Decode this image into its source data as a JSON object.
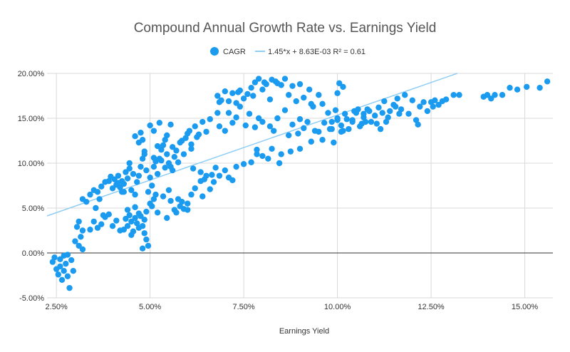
{
  "chart_data": {
    "type": "scatter",
    "title": "Compound Annual Growth Rate vs. Earnings Yield",
    "xlabel": "Earnings Yield",
    "ylabel": "",
    "xlim": [
      2.25,
      15.75
    ],
    "ylim": [
      -5,
      20
    ],
    "x_ticks": [
      "2.50%",
      "5.00%",
      "7.50%",
      "10.00%",
      "12.50%",
      "15.00%"
    ],
    "y_ticks": [
      "-5.00%",
      "0.00%",
      "5.00%",
      "10.00%",
      "15.00%",
      "20.00%"
    ],
    "grid": true,
    "legend_position": "top",
    "point_color": "#1a9bf0",
    "trendline_color": "#8fcdf5",
    "series": [
      {
        "name": "CAGR",
        "points": [
          [
            2.4,
            -1.0
          ],
          [
            2.45,
            -0.5
          ],
          [
            2.5,
            -1.8
          ],
          [
            2.55,
            -2.4
          ],
          [
            2.6,
            -0.7
          ],
          [
            2.65,
            -3.0
          ],
          [
            2.7,
            -0.3
          ],
          [
            2.75,
            -1.2
          ],
          [
            2.8,
            -2.6
          ],
          [
            2.85,
            -3.9
          ],
          [
            2.9,
            -0.8
          ],
          [
            2.95,
            -2.0
          ],
          [
            2.6,
            -1.5
          ],
          [
            2.7,
            -2.0
          ],
          [
            2.8,
            -0.2
          ],
          [
            3.0,
            1.3
          ],
          [
            3.05,
            2.9
          ],
          [
            3.1,
            0.8
          ],
          [
            3.15,
            1.8
          ],
          [
            3.2,
            0.4
          ],
          [
            3.1,
            3.5
          ],
          [
            3.2,
            2.5
          ],
          [
            3.4,
            2.6
          ],
          [
            3.5,
            3.5
          ],
          [
            3.6,
            2.8
          ],
          [
            3.7,
            3.2
          ],
          [
            3.8,
            4.0
          ],
          [
            3.9,
            4.3
          ],
          [
            4.0,
            3.0
          ],
          [
            4.1,
            3.6
          ],
          [
            3.55,
            5.0
          ],
          [
            3.75,
            4.2
          ],
          [
            4.2,
            2.5
          ],
          [
            4.3,
            2.6
          ],
          [
            4.35,
            3.8
          ],
          [
            4.4,
            3.0
          ],
          [
            4.45,
            4.2
          ],
          [
            4.5,
            3.5
          ],
          [
            4.55,
            2.4
          ],
          [
            4.6,
            3.9
          ],
          [
            4.65,
            3.3
          ],
          [
            4.7,
            2.8
          ],
          [
            4.75,
            4.1
          ],
          [
            4.8,
            3.0
          ],
          [
            4.85,
            2.2
          ],
          [
            4.9,
            1.5
          ],
          [
            4.95,
            0.8
          ],
          [
            4.8,
            0.5
          ],
          [
            4.85,
            3.7
          ],
          [
            4.9,
            4.6
          ],
          [
            5.0,
            5.5
          ],
          [
            5.05,
            5.2
          ],
          [
            5.1,
            6.0
          ],
          [
            5.15,
            6.5
          ],
          [
            4.4,
            4.8
          ],
          [
            4.6,
            5.1
          ],
          [
            4.7,
            4.4
          ],
          [
            4.5,
            2.0
          ],
          [
            5.2,
            4.5
          ],
          [
            5.35,
            6.3
          ],
          [
            5.5,
            7.0
          ],
          [
            5.55,
            5.8
          ],
          [
            5.65,
            4.8
          ],
          [
            5.75,
            6.0
          ],
          [
            5.8,
            5.2
          ],
          [
            5.9,
            4.9
          ],
          [
            6.0,
            5.5
          ],
          [
            6.1,
            6.5
          ],
          [
            6.2,
            7.2
          ],
          [
            6.35,
            8.0
          ],
          [
            6.5,
            8.6
          ],
          [
            6.7,
            7.9
          ],
          [
            6.85,
            8.6
          ],
          [
            7.0,
            9.2
          ],
          [
            7.1,
            8.4
          ],
          [
            7.3,
            9.6
          ],
          [
            7.5,
            9.9
          ],
          [
            7.7,
            10.1
          ],
          [
            7.85,
            11.0
          ],
          [
            8.0,
            10.8
          ],
          [
            8.25,
            11.6
          ],
          [
            8.5,
            11.0
          ],
          [
            8.75,
            11.3
          ],
          [
            9.0,
            11.6
          ],
          [
            9.3,
            12.4
          ],
          [
            9.5,
            13.5
          ],
          [
            9.65,
            14.5
          ],
          [
            9.85,
            13.8
          ],
          [
            10.0,
            14.8
          ],
          [
            5.85,
            5.7
          ],
          [
            6.0,
            4.8
          ],
          [
            5.45,
            3.9
          ],
          [
            5.7,
            4.5
          ],
          [
            6.4,
            6.3
          ],
          [
            6.6,
            7.1
          ],
          [
            7.2,
            8.1
          ],
          [
            7.85,
            11.5
          ],
          [
            8.15,
            10.5
          ],
          [
            8.45,
            10.0
          ],
          [
            3.2,
            6.0
          ],
          [
            3.3,
            5.7
          ],
          [
            3.4,
            6.5
          ],
          [
            3.5,
            7.0
          ],
          [
            3.6,
            6.8
          ],
          [
            3.7,
            7.4
          ],
          [
            3.8,
            7.9
          ],
          [
            3.9,
            8.0
          ],
          [
            4.0,
            7.2
          ],
          [
            4.05,
            8.2
          ],
          [
            4.1,
            7.6
          ],
          [
            4.15,
            8.6
          ],
          [
            4.2,
            7.3
          ],
          [
            4.25,
            6.8
          ],
          [
            4.3,
            7.7
          ],
          [
            4.35,
            9.0
          ],
          [
            4.4,
            8.3
          ],
          [
            4.45,
            9.4
          ],
          [
            4.5,
            7.0
          ],
          [
            4.55,
            8.8
          ],
          [
            4.6,
            6.5
          ],
          [
            4.65,
            7.9
          ],
          [
            4.7,
            8.6
          ],
          [
            4.75,
            9.6
          ],
          [
            4.8,
            10.5
          ],
          [
            4.85,
            11.0
          ],
          [
            4.9,
            9.2
          ],
          [
            5.0,
            8.4
          ],
          [
            5.05,
            7.5
          ],
          [
            5.1,
            9.6
          ],
          [
            4.95,
            6.8
          ],
          [
            5.15,
            10.2
          ],
          [
            5.2,
            8.8
          ],
          [
            5.25,
            10.5
          ],
          [
            5.3,
            11.5
          ],
          [
            5.35,
            12.0
          ],
          [
            5.4,
            12.6
          ],
          [
            5.45,
            11.0
          ],
          [
            5.5,
            10.0
          ],
          [
            5.55,
            9.6
          ],
          [
            5.6,
            11.8
          ],
          [
            5.65,
            10.7
          ],
          [
            5.7,
            11.4
          ],
          [
            5.75,
            10.1
          ],
          [
            5.8,
            12.3
          ],
          [
            5.85,
            12.5
          ],
          [
            5.9,
            11.0
          ],
          [
            5.95,
            12.8
          ],
          [
            6.0,
            13.3
          ],
          [
            6.05,
            13.6
          ],
          [
            6.1,
            11.6
          ],
          [
            6.2,
            14.1
          ],
          [
            6.3,
            13.2
          ],
          [
            6.4,
            14.6
          ],
          [
            6.5,
            13.5
          ],
          [
            6.6,
            14.9
          ],
          [
            6.8,
            15.6
          ],
          [
            6.85,
            14.1
          ],
          [
            7.0,
            13.6
          ],
          [
            7.1,
            15.6
          ],
          [
            7.2,
            14.5
          ],
          [
            7.3,
            15.1
          ],
          [
            7.4,
            16.3
          ],
          [
            7.55,
            14.2
          ],
          [
            7.65,
            15.5
          ],
          [
            7.8,
            14.0
          ],
          [
            7.9,
            15.0
          ],
          [
            4.6,
            13.0
          ],
          [
            4.7,
            12.3
          ],
          [
            4.75,
            13.4
          ],
          [
            4.8,
            12.6
          ],
          [
            4.85,
            11.3
          ],
          [
            5.0,
            14.2
          ],
          [
            5.1,
            13.6
          ],
          [
            5.25,
            14.5
          ],
          [
            5.45,
            13.1
          ],
          [
            5.55,
            14.3
          ],
          [
            5.3,
            10.3
          ],
          [
            5.4,
            9.5
          ],
          [
            6.1,
            12.1
          ],
          [
            6.25,
            12.9
          ],
          [
            4.45,
            10.0
          ],
          [
            4.25,
            8.0
          ],
          [
            3.95,
            8.5
          ],
          [
            4.15,
            7.8
          ],
          [
            4.3,
            6.8
          ],
          [
            3.65,
            6.0
          ],
          [
            5.1,
            10.6
          ],
          [
            5.2,
            11.9
          ],
          [
            5.6,
            9.2
          ],
          [
            6.15,
            9.4
          ],
          [
            6.35,
            9.0
          ],
          [
            6.45,
            8.2
          ],
          [
            6.65,
            8.7
          ],
          [
            6.75,
            9.5
          ],
          [
            6.8,
            17.5
          ],
          [
            6.9,
            17.0
          ],
          [
            7.0,
            18.0
          ],
          [
            7.1,
            16.9
          ],
          [
            7.2,
            17.8
          ],
          [
            7.3,
            16.7
          ],
          [
            7.4,
            18.1
          ],
          [
            7.5,
            17.2
          ],
          [
            7.6,
            17.7
          ],
          [
            7.7,
            18.4
          ],
          [
            7.8,
            19.0
          ],
          [
            7.9,
            19.4
          ],
          [
            8.0,
            18.2
          ],
          [
            8.1,
            18.8
          ],
          [
            8.2,
            17.1
          ],
          [
            8.35,
            19.1
          ],
          [
            8.5,
            18.7
          ],
          [
            8.6,
            19.4
          ],
          [
            8.7,
            17.6
          ],
          [
            8.8,
            18.6
          ],
          [
            8.9,
            16.9
          ],
          [
            9.0,
            18.8
          ],
          [
            9.1,
            17.3
          ],
          [
            9.25,
            18.2
          ],
          [
            9.35,
            16.3
          ],
          [
            9.5,
            17.6
          ],
          [
            9.6,
            16.6
          ],
          [
            9.75,
            15.6
          ],
          [
            9.85,
            14.6
          ],
          [
            9.95,
            15.9
          ],
          [
            10.05,
            18.9
          ],
          [
            10.15,
            18.5
          ],
          [
            10.0,
            17.8
          ],
          [
            8.4,
            18.9
          ],
          [
            8.05,
            19.0
          ],
          [
            8.25,
            19.3
          ],
          [
            7.35,
            17.9
          ],
          [
            7.75,
            17.5
          ],
          [
            9.3,
            16.6
          ],
          [
            6.85,
            16.8
          ],
          [
            8.0,
            14.6
          ],
          [
            8.2,
            14.1
          ],
          [
            8.4,
            15.0
          ],
          [
            8.6,
            15.9
          ],
          [
            8.8,
            14.3
          ],
          [
            9.0,
            14.9
          ],
          [
            9.1,
            13.9
          ],
          [
            9.2,
            14.6
          ],
          [
            9.4,
            13.6
          ],
          [
            9.6,
            12.6
          ],
          [
            9.8,
            13.8
          ],
          [
            9.9,
            12.3
          ],
          [
            8.3,
            13.6
          ],
          [
            8.7,
            13.1
          ],
          [
            8.95,
            13.3
          ],
          [
            10.0,
            15.0
          ],
          [
            10.1,
            14.2
          ],
          [
            10.2,
            15.5
          ],
          [
            10.3,
            13.8
          ],
          [
            10.4,
            14.8
          ],
          [
            10.5,
            15.6
          ],
          [
            10.6,
            14.1
          ],
          [
            10.7,
            15.1
          ],
          [
            10.8,
            16.0
          ],
          [
            10.9,
            14.6
          ],
          [
            11.0,
            15.3
          ],
          [
            11.1,
            16.2
          ],
          [
            11.2,
            15.6
          ],
          [
            11.3,
            14.6
          ],
          [
            11.4,
            15.8
          ],
          [
            11.5,
            16.5
          ],
          [
            11.6,
            17.2
          ],
          [
            11.7,
            16.0
          ],
          [
            11.8,
            17.6
          ],
          [
            11.9,
            15.5
          ],
          [
            12.0,
            17.0
          ],
          [
            12.1,
            14.8
          ],
          [
            12.2,
            16.3
          ],
          [
            12.3,
            16.8
          ],
          [
            12.4,
            15.8
          ],
          [
            12.5,
            16.8
          ],
          [
            10.15,
            13.6
          ],
          [
            10.45,
            15.8
          ],
          [
            10.75,
            14.6
          ],
          [
            11.05,
            14.4
          ],
          [
            11.35,
            15.1
          ],
          [
            11.65,
            15.5
          ],
          [
            10.25,
            14.9
          ],
          [
            10.55,
            16.0
          ],
          [
            11.25,
            16.9
          ],
          [
            10.7,
            15.5
          ],
          [
            10.4,
            14.6
          ],
          [
            11.55,
            16.3
          ],
          [
            11.15,
            13.8
          ],
          [
            12.15,
            14.3
          ],
          [
            10.85,
            15.8
          ],
          [
            10.1,
            13.5
          ],
          [
            10.65,
            14.4
          ],
          [
            12.6,
            17.0
          ],
          [
            12.7,
            16.5
          ],
          [
            12.8,
            16.9
          ],
          [
            12.9,
            17.1
          ],
          [
            13.1,
            17.6
          ],
          [
            13.25,
            17.6
          ],
          [
            13.9,
            17.4
          ],
          [
            14.0,
            17.6
          ],
          [
            14.2,
            17.6
          ],
          [
            14.4,
            17.6
          ],
          [
            14.6,
            18.4
          ],
          [
            14.8,
            18.2
          ],
          [
            15.05,
            18.5
          ],
          [
            15.4,
            18.4
          ],
          [
            15.6,
            19.1
          ],
          [
            14.1,
            17.2
          ],
          [
            12.55,
            16.3
          ]
        ]
      },
      {
        "name": "1.45*x + 8.63E-03 R² = 0.61",
        "type": "trendline",
        "slope": 1.45,
        "intercept_percent": 0.863,
        "r_squared": 0.61
      }
    ]
  }
}
